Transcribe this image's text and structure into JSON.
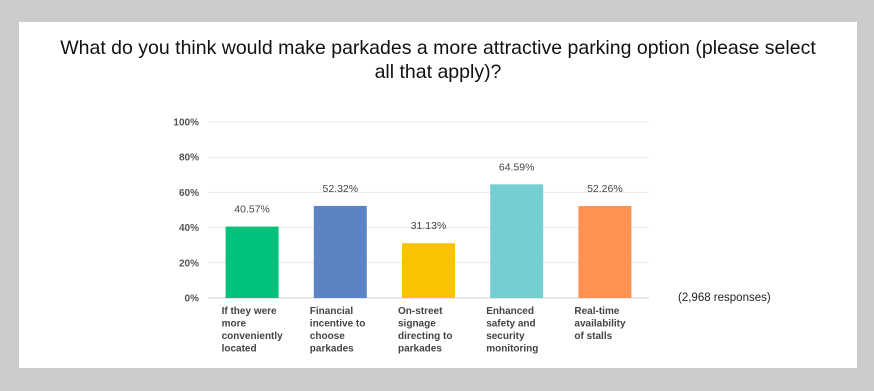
{
  "chart_data": {
    "type": "bar",
    "title_lines": [
      "What do you think would make parkades a more attractive parking option (please select",
      "all that apply)?"
    ],
    "categories": [
      "If they were more conveniently located",
      "Financial incentive to choose parkades",
      "On-street signage directing to parkades",
      "Enhanced safety and security monitoring",
      "Real-time availability of stalls"
    ],
    "category_lines": [
      [
        "If they were",
        "more",
        "conveniently",
        "located"
      ],
      [
        "Financial",
        "incentive to",
        "choose",
        "parkades"
      ],
      [
        "On-street",
        "signage",
        "directing to",
        "parkades"
      ],
      [
        "Enhanced",
        "safety and",
        "security",
        "monitoring"
      ],
      [
        "Real-time",
        "availability",
        "of stalls"
      ]
    ],
    "values": [
      40.57,
      52.32,
      31.13,
      64.59,
      52.26
    ],
    "value_labels": [
      "40.57%",
      "52.32%",
      "31.13%",
      "64.59%",
      "52.26%"
    ],
    "colors": [
      "#00c27a",
      "#5b84c4",
      "#f9c300",
      "#75cfd2",
      "#ff9153"
    ],
    "ylim": [
      0,
      100
    ],
    "yticks": [
      0,
      20,
      40,
      60,
      80,
      100
    ],
    "ytick_labels": [
      "0%",
      "20%",
      "40%",
      "60%",
      "80%",
      "100%"
    ],
    "grid": true,
    "responses_note": "(2,968 responses)"
  }
}
